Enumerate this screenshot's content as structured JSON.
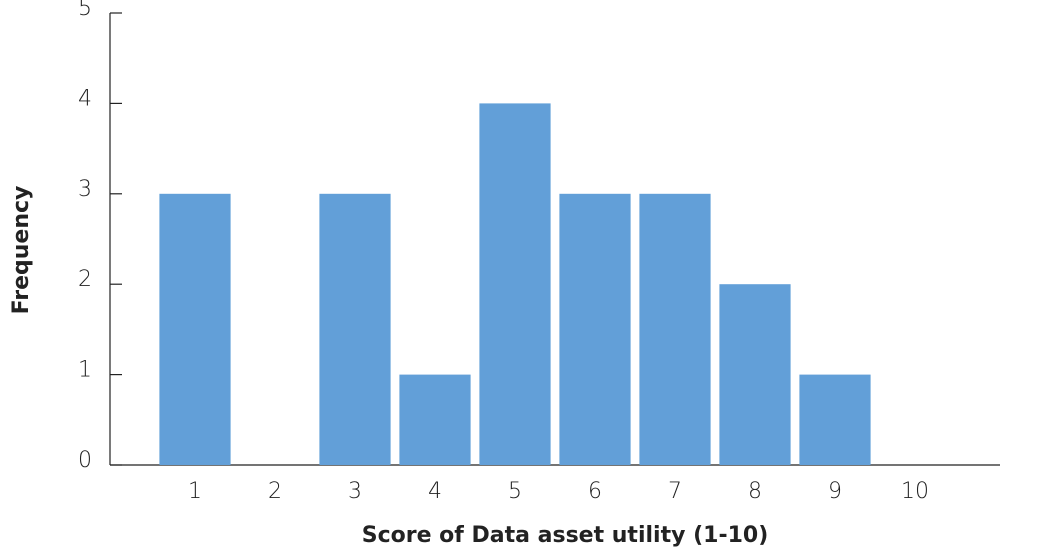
{
  "chart_data": {
    "type": "bar",
    "x_label": "Score of Data asset utility (1-10)",
    "y_label": "Frequency",
    "categories": [
      "1",
      "2",
      "3",
      "4",
      "5",
      "6",
      "7",
      "8",
      "9",
      "10"
    ],
    "values": [
      3,
      0,
      3,
      1,
      4,
      3,
      3,
      2,
      1,
      0
    ],
    "color": "#629fd8",
    "ylim": [
      0,
      5
    ],
    "yticks": [
      0,
      1,
      2,
      3,
      4,
      5
    ],
    "grid": false
  }
}
